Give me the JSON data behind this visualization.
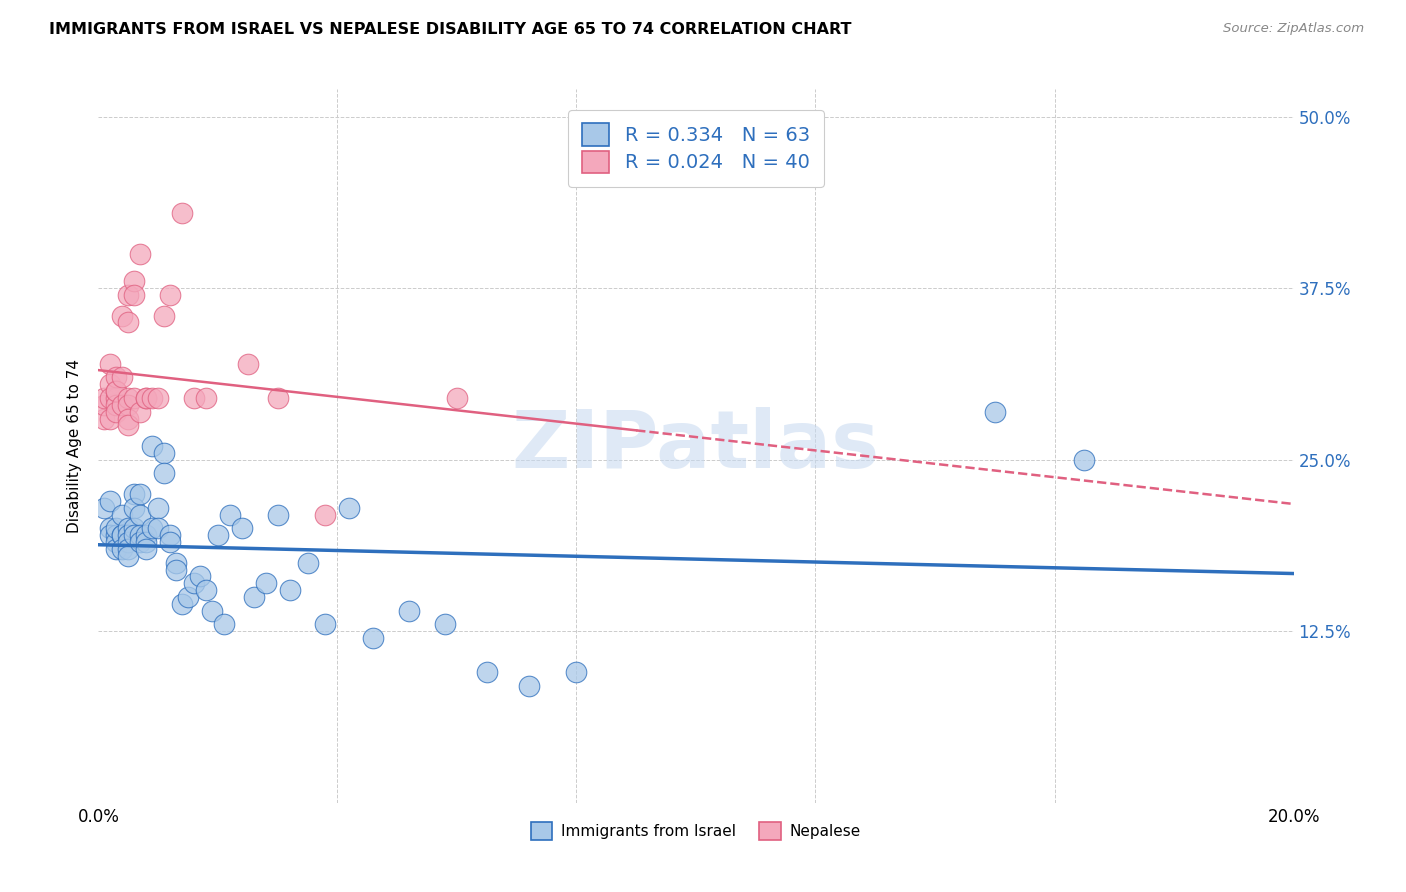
{
  "title": "IMMIGRANTS FROM ISRAEL VS NEPALESE DISABILITY AGE 65 TO 74 CORRELATION CHART",
  "source": "Source: ZipAtlas.com",
  "ylabel": "Disability Age 65 to 74",
  "yticks": [
    "12.5%",
    "25.0%",
    "37.5%",
    "50.0%"
  ],
  "ytick_vals": [
    0.125,
    0.25,
    0.375,
    0.5
  ],
  "legend_label1": "Immigrants from Israel",
  "legend_label2": "Nepalese",
  "R1": "0.334",
  "N1": "63",
  "R2": "0.024",
  "N2": "40",
  "color_blue": "#a8c8e8",
  "color_pink": "#f4a8bc",
  "color_line_blue": "#2e6fbd",
  "color_line_pink": "#e06080",
  "watermark": "ZIPatlas",
  "blue_x": [
    0.001,
    0.002,
    0.002,
    0.002,
    0.003,
    0.003,
    0.003,
    0.003,
    0.004,
    0.004,
    0.004,
    0.004,
    0.005,
    0.005,
    0.005,
    0.005,
    0.005,
    0.006,
    0.006,
    0.006,
    0.006,
    0.007,
    0.007,
    0.007,
    0.007,
    0.008,
    0.008,
    0.008,
    0.009,
    0.009,
    0.01,
    0.01,
    0.011,
    0.011,
    0.012,
    0.012,
    0.013,
    0.013,
    0.014,
    0.015,
    0.016,
    0.017,
    0.018,
    0.019,
    0.02,
    0.021,
    0.022,
    0.024,
    0.026,
    0.028,
    0.03,
    0.032,
    0.035,
    0.038,
    0.042,
    0.046,
    0.052,
    0.058,
    0.065,
    0.072,
    0.08,
    0.15,
    0.165
  ],
  "blue_y": [
    0.215,
    0.2,
    0.22,
    0.195,
    0.195,
    0.19,
    0.2,
    0.185,
    0.21,
    0.195,
    0.195,
    0.185,
    0.2,
    0.195,
    0.19,
    0.185,
    0.18,
    0.225,
    0.215,
    0.2,
    0.195,
    0.225,
    0.21,
    0.195,
    0.19,
    0.195,
    0.19,
    0.185,
    0.26,
    0.2,
    0.215,
    0.2,
    0.255,
    0.24,
    0.195,
    0.19,
    0.175,
    0.17,
    0.145,
    0.15,
    0.16,
    0.165,
    0.155,
    0.14,
    0.195,
    0.13,
    0.21,
    0.2,
    0.15,
    0.16,
    0.21,
    0.155,
    0.175,
    0.13,
    0.215,
    0.12,
    0.14,
    0.13,
    0.095,
    0.085,
    0.095,
    0.285,
    0.25
  ],
  "pink_x": [
    0.001,
    0.001,
    0.001,
    0.002,
    0.002,
    0.002,
    0.002,
    0.003,
    0.003,
    0.003,
    0.003,
    0.003,
    0.003,
    0.004,
    0.004,
    0.004,
    0.005,
    0.005,
    0.005,
    0.005,
    0.005,
    0.005,
    0.006,
    0.006,
    0.006,
    0.007,
    0.007,
    0.008,
    0.008,
    0.009,
    0.01,
    0.011,
    0.012,
    0.014,
    0.016,
    0.018,
    0.025,
    0.03,
    0.038,
    0.06
  ],
  "pink_y": [
    0.28,
    0.29,
    0.295,
    0.32,
    0.305,
    0.295,
    0.28,
    0.295,
    0.3,
    0.29,
    0.285,
    0.31,
    0.3,
    0.29,
    0.355,
    0.31,
    0.37,
    0.35,
    0.295,
    0.29,
    0.28,
    0.275,
    0.38,
    0.37,
    0.295,
    0.4,
    0.285,
    0.295,
    0.295,
    0.295,
    0.295,
    0.355,
    0.37,
    0.43,
    0.295,
    0.295,
    0.32,
    0.295,
    0.21,
    0.295
  ],
  "xlim": [
    0.0,
    0.2
  ],
  "ylim": [
    0.0,
    0.52
  ]
}
